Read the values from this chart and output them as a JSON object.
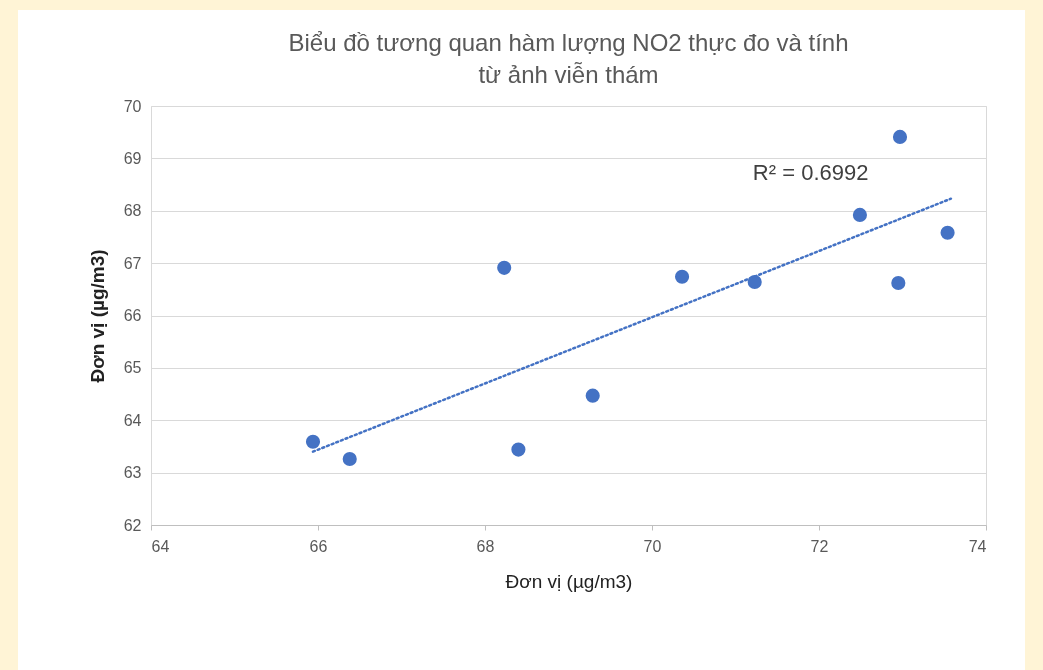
{
  "chart_data": {
    "type": "scatter",
    "title": "Biểu đồ tương quan hàm lượng NO2 thực đo và tính từ ảnh viễn thám",
    "xlabel": "Đơn vị (µg/m3)",
    "ylabel": "Đơn vị (µg/m3)",
    "series": [
      {
        "color": "#4472c4",
        "marker": "circle",
        "x": [
          65.94,
          66.38,
          68.23,
          68.4,
          69.29,
          70.36,
          71.23,
          72.49,
          72.97,
          72.95,
          73.54
        ],
        "values": [
          63.59,
          63.26,
          66.91,
          63.44,
          64.47,
          66.74,
          66.64,
          67.92,
          69.41,
          66.62,
          67.58
        ]
      },
      {
        "type": "line",
        "color": "#4472c4",
        "line_style": "dotted",
        "x": [
          65.94,
          73.58
        ],
        "values": [
          63.4,
          68.23
        ]
      }
    ],
    "annotations": [
      "R² = 0.6992"
    ],
    "xlim": [
      64,
      74
    ],
    "xticks": [
      64,
      66,
      68,
      70,
      72,
      74
    ],
    "ylim": [
      62,
      70
    ],
    "yticks": [
      62,
      63,
      64,
      65,
      66,
      67,
      68,
      69,
      70
    ],
    "grid": "y"
  }
}
